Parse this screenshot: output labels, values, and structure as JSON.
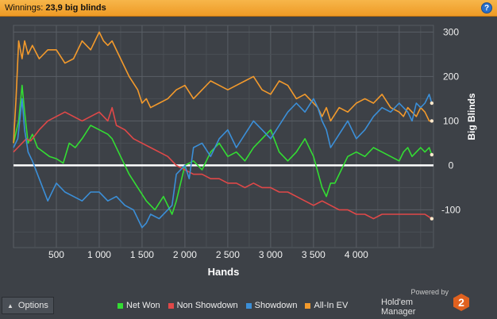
{
  "header": {
    "label": "Winnings:",
    "value": "23,9 big blinds",
    "help_label": "?"
  },
  "options": {
    "label": "Options"
  },
  "brand": {
    "powered": "Powered by",
    "name": "Hold'em Manager",
    "version": "2"
  },
  "colors": {
    "net_won": "#33dd33",
    "non_showdown": "#e04848",
    "showdown": "#3b8fd8",
    "all_in_ev": "#f39a2c"
  },
  "chart_data": {
    "type": "line",
    "xlabel": "Hands",
    "ylabel": "Big Blinds",
    "xlim": [
      0,
      4900
    ],
    "ylim": [
      -185,
      315
    ],
    "x_ticks": [
      500,
      1000,
      1500,
      2000,
      2500,
      3000,
      3500,
      4000
    ],
    "x_tick_labels": [
      "500",
      "1 000",
      "1 500",
      "2 000",
      "2 500",
      "3 000",
      "3 500",
      "4 000"
    ],
    "y_ticks": [
      300,
      200,
      100,
      0,
      -100
    ],
    "y_tick_labels": [
      "300",
      "200",
      "100",
      "0",
      "-100"
    ],
    "grid": true,
    "legend": "bottom",
    "series": [
      {
        "name": "Net Won",
        "color": "#33dd33",
        "x": [
          0,
          60,
          100,
          130,
          170,
          220,
          280,
          350,
          420,
          500,
          580,
          650,
          720,
          800,
          900,
          1000,
          1100,
          1150,
          1250,
          1350,
          1450,
          1550,
          1650,
          1750,
          1850,
          1900,
          1950,
          2000,
          2100,
          2200,
          2300,
          2400,
          2500,
          2600,
          2700,
          2800,
          2900,
          3000,
          3100,
          3200,
          3300,
          3400,
          3500,
          3600,
          3650,
          3700,
          3750,
          3800,
          3900,
          4000,
          4100,
          4200,
          4300,
          4400,
          4500,
          4550,
          4600,
          4650,
          4700,
          4750,
          4800,
          4850,
          4880
        ],
        "y": [
          50,
          100,
          180,
          120,
          50,
          70,
          40,
          30,
          20,
          15,
          5,
          50,
          40,
          60,
          90,
          80,
          70,
          60,
          20,
          -20,
          -50,
          -80,
          -100,
          -70,
          -110,
          -80,
          -40,
          0,
          10,
          -10,
          30,
          50,
          20,
          30,
          10,
          40,
          60,
          80,
          30,
          10,
          30,
          60,
          20,
          -50,
          -70,
          -40,
          -40,
          -20,
          20,
          30,
          20,
          40,
          30,
          20,
          10,
          30,
          40,
          20,
          30,
          40,
          30,
          40,
          24
        ]
      },
      {
        "name": "Non Showdown",
        "color": "#e04848",
        "x": [
          0,
          50,
          100,
          150,
          200,
          300,
          400,
          500,
          600,
          700,
          800,
          900,
          1000,
          1100,
          1150,
          1200,
          1300,
          1400,
          1500,
          1600,
          1700,
          1800,
          1900,
          2000,
          2100,
          2200,
          2300,
          2400,
          2500,
          2600,
          2700,
          2800,
          2900,
          3000,
          3100,
          3200,
          3300,
          3400,
          3500,
          3600,
          3700,
          3800,
          3900,
          4000,
          4100,
          4200,
          4300,
          4400,
          4500,
          4600,
          4700,
          4800,
          4880
        ],
        "y": [
          30,
          40,
          50,
          60,
          55,
          80,
          100,
          110,
          120,
          110,
          100,
          110,
          120,
          100,
          130,
          90,
          80,
          60,
          50,
          40,
          30,
          20,
          0,
          -10,
          -20,
          -20,
          -30,
          -30,
          -40,
          -40,
          -50,
          -40,
          -50,
          -50,
          -60,
          -60,
          -70,
          -80,
          -90,
          -80,
          -90,
          -100,
          -100,
          -110,
          -110,
          -120,
          -110,
          -110,
          -110,
          -110,
          -110,
          -110,
          -120
        ]
      },
      {
        "name": "Showdown",
        "color": "#3b8fd8",
        "x": [
          0,
          50,
          100,
          130,
          170,
          220,
          300,
          400,
          500,
          600,
          700,
          800,
          900,
          1000,
          1100,
          1200,
          1300,
          1400,
          1500,
          1550,
          1600,
          1700,
          1800,
          1850,
          1900,
          2000,
          2050,
          2100,
          2200,
          2300,
          2400,
          2500,
          2600,
          2700,
          2800,
          2900,
          3000,
          3100,
          3200,
          3300,
          3400,
          3500,
          3550,
          3600,
          3650,
          3700,
          3800,
          3900,
          4000,
          4100,
          4200,
          4300,
          4400,
          4500,
          4600,
          4650,
          4700,
          4750,
          4800,
          4850,
          4880
        ],
        "y": [
          40,
          60,
          150,
          80,
          30,
          10,
          -30,
          -80,
          -40,
          -60,
          -70,
          -80,
          -60,
          -60,
          -80,
          -70,
          -90,
          -100,
          -140,
          -130,
          -110,
          -120,
          -100,
          -90,
          -20,
          0,
          -30,
          40,
          50,
          20,
          60,
          80,
          40,
          70,
          100,
          80,
          60,
          90,
          120,
          140,
          120,
          150,
          130,
          100,
          80,
          40,
          70,
          100,
          60,
          80,
          110,
          130,
          120,
          140,
          120,
          100,
          140,
          130,
          140,
          160,
          140
        ]
      },
      {
        "name": "All-In EV",
        "color": "#f39a2c",
        "x": [
          0,
          30,
          60,
          100,
          130,
          170,
          220,
          300,
          400,
          500,
          600,
          700,
          800,
          900,
          1000,
          1050,
          1100,
          1150,
          1250,
          1350,
          1450,
          1500,
          1550,
          1600,
          1700,
          1800,
          1900,
          2000,
          2100,
          2200,
          2300,
          2400,
          2500,
          2600,
          2700,
          2800,
          2900,
          3000,
          3100,
          3200,
          3300,
          3400,
          3500,
          3550,
          3600,
          3650,
          3700,
          3800,
          3900,
          4000,
          4100,
          4200,
          4300,
          4400,
          4500,
          4550,
          4600,
          4650,
          4700,
          4750,
          4800,
          4850,
          4880
        ],
        "y": [
          50,
          150,
          280,
          240,
          280,
          250,
          270,
          240,
          260,
          260,
          230,
          240,
          280,
          260,
          300,
          280,
          270,
          280,
          240,
          200,
          170,
          140,
          150,
          130,
          140,
          150,
          170,
          180,
          150,
          170,
          190,
          180,
          170,
          180,
          190,
          200,
          170,
          160,
          190,
          180,
          150,
          160,
          140,
          130,
          110,
          130,
          100,
          130,
          120,
          140,
          150,
          140,
          160,
          130,
          120,
          110,
          130,
          120,
          110,
          130,
          120,
          100,
          100
        ]
      }
    ]
  }
}
